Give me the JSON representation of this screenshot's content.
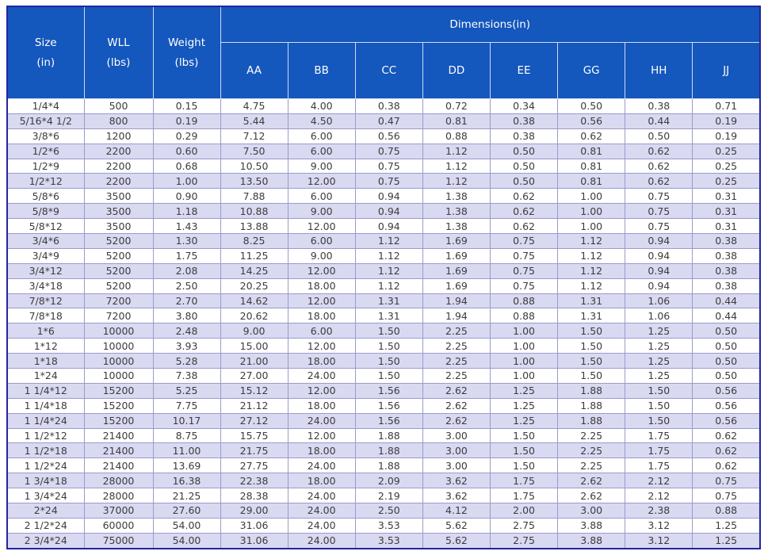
{
  "theme": {
    "header-bg": "#1457bd",
    "header-text": "#ffffff",
    "header-line": "#cfdcf2",
    "stripe-bg": "#d9d9f2",
    "row-bg": "#ffffff",
    "grid-border": "#9b9bca",
    "outer-border": "#2424a0",
    "body-text": "#3c3c3c"
  },
  "table": {
    "columns": {
      "size": {
        "label": "Size",
        "unit": "(in)"
      },
      "wll": {
        "label": "WLL",
        "unit": "(lbs)"
      },
      "weight": {
        "label": "Weight",
        "unit": "(lbs)"
      }
    },
    "dimensions_label": "Dimensions(in)"
  },
  "chart_data": {
    "type": "table",
    "title": "",
    "column_groups": [
      {
        "label": "Dimensions(in)",
        "span": [
          "AA",
          "BB",
          "CC",
          "DD",
          "EE",
          "GG",
          "HH",
          "JJ"
        ]
      }
    ],
    "columns": [
      "Size (in)",
      "WLL (lbs)",
      "Weight (lbs)",
      "AA",
      "BB",
      "CC",
      "DD",
      "EE",
      "GG",
      "HH",
      "JJ"
    ],
    "dim_columns": [
      "AA",
      "BB",
      "CC",
      "DD",
      "EE",
      "GG",
      "HH",
      "JJ"
    ],
    "rows": [
      [
        "1/4*4",
        "500",
        "0.15",
        "4.75",
        "4.00",
        "0.38",
        "0.72",
        "0.34",
        "0.50",
        "0.38",
        "0.71"
      ],
      [
        "5/16*4 1/2",
        "800",
        "0.19",
        "5.44",
        "4.50",
        "0.47",
        "0.81",
        "0.38",
        "0.56",
        "0.44",
        "0.19"
      ],
      [
        "3/8*6",
        "1200",
        "0.29",
        "7.12",
        "6.00",
        "0.56",
        "0.88",
        "0.38",
        "0.62",
        "0.50",
        "0.19"
      ],
      [
        "1/2*6",
        "2200",
        "0.60",
        "7.50",
        "6.00",
        "0.75",
        "1.12",
        "0.50",
        "0.81",
        "0.62",
        "0.25"
      ],
      [
        "1/2*9",
        "2200",
        "0.68",
        "10.50",
        "9.00",
        "0.75",
        "1.12",
        "0.50",
        "0.81",
        "0.62",
        "0.25"
      ],
      [
        "1/2*12",
        "2200",
        "1.00",
        "13.50",
        "12.00",
        "0.75",
        "1.12",
        "0.50",
        "0.81",
        "0.62",
        "0.25"
      ],
      [
        "5/8*6",
        "3500",
        "0.90",
        "7.88",
        "6.00",
        "0.94",
        "1.38",
        "0.62",
        "1.00",
        "0.75",
        "0.31"
      ],
      [
        "5/8*9",
        "3500",
        "1.18",
        "10.88",
        "9.00",
        "0.94",
        "1.38",
        "0.62",
        "1.00",
        "0.75",
        "0.31"
      ],
      [
        "5/8*12",
        "3500",
        "1.43",
        "13.88",
        "12.00",
        "0.94",
        "1.38",
        "0.62",
        "1.00",
        "0.75",
        "0.31"
      ],
      [
        "3/4*6",
        "5200",
        "1.30",
        "8.25",
        "6.00",
        "1.12",
        "1.69",
        "0.75",
        "1.12",
        "0.94",
        "0.38"
      ],
      [
        "3/4*9",
        "5200",
        "1.75",
        "11.25",
        "9.00",
        "1.12",
        "1.69",
        "0.75",
        "1.12",
        "0.94",
        "0.38"
      ],
      [
        "3/4*12",
        "5200",
        "2.08",
        "14.25",
        "12.00",
        "1.12",
        "1.69",
        "0.75",
        "1.12",
        "0.94",
        "0.38"
      ],
      [
        "3/4*18",
        "5200",
        "2.50",
        "20.25",
        "18.00",
        "1.12",
        "1.69",
        "0.75",
        "1.12",
        "0.94",
        "0.38"
      ],
      [
        "7/8*12",
        "7200",
        "2.70",
        "14.62",
        "12.00",
        "1.31",
        "1.94",
        "0.88",
        "1.31",
        "1.06",
        "0.44"
      ],
      [
        "7/8*18",
        "7200",
        "3.80",
        "20.62",
        "18.00",
        "1.31",
        "1.94",
        "0.88",
        "1.31",
        "1.06",
        "0.44"
      ],
      [
        "1*6",
        "10000",
        "2.48",
        "9.00",
        "6.00",
        "1.50",
        "2.25",
        "1.00",
        "1.50",
        "1.25",
        "0.50"
      ],
      [
        "1*12",
        "10000",
        "3.93",
        "15.00",
        "12.00",
        "1.50",
        "2.25",
        "1.00",
        "1.50",
        "1.25",
        "0.50"
      ],
      [
        "1*18",
        "10000",
        "5.28",
        "21.00",
        "18.00",
        "1.50",
        "2.25",
        "1.00",
        "1.50",
        "1.25",
        "0.50"
      ],
      [
        "1*24",
        "10000",
        "7.38",
        "27.00",
        "24.00",
        "1.50",
        "2.25",
        "1.00",
        "1.50",
        "1.25",
        "0.50"
      ],
      [
        "1 1/4*12",
        "15200",
        "5.25",
        "15.12",
        "12.00",
        "1.56",
        "2.62",
        "1.25",
        "1.88",
        "1.50",
        "0.56"
      ],
      [
        "1 1/4*18",
        "15200",
        "7.75",
        "21.12",
        "18.00",
        "1.56",
        "2.62",
        "1.25",
        "1.88",
        "1.50",
        "0.56"
      ],
      [
        "1 1/4*24",
        "15200",
        "10.17",
        "27.12",
        "24.00",
        "1.56",
        "2.62",
        "1.25",
        "1.88",
        "1.50",
        "0.56"
      ],
      [
        "1 1/2*12",
        "21400",
        "8.75",
        "15.75",
        "12.00",
        "1.88",
        "3.00",
        "1.50",
        "2.25",
        "1.75",
        "0.62"
      ],
      [
        "1 1/2*18",
        "21400",
        "11.00",
        "21.75",
        "18.00",
        "1.88",
        "3.00",
        "1.50",
        "2.25",
        "1.75",
        "0.62"
      ],
      [
        "1 1/2*24",
        "21400",
        "13.69",
        "27.75",
        "24.00",
        "1.88",
        "3.00",
        "1.50",
        "2.25",
        "1.75",
        "0.62"
      ],
      [
        "1 3/4*18",
        "28000",
        "16.38",
        "22.38",
        "18.00",
        "2.09",
        "3.62",
        "1.75",
        "2.62",
        "2.12",
        "0.75"
      ],
      [
        "1 3/4*24",
        "28000",
        "21.25",
        "28.38",
        "24.00",
        "2.19",
        "3.62",
        "1.75",
        "2.62",
        "2.12",
        "0.75"
      ],
      [
        "2*24",
        "37000",
        "27.60",
        "29.00",
        "24.00",
        "2.50",
        "4.12",
        "2.00",
        "3.00",
        "2.38",
        "0.88"
      ],
      [
        "2 1/2*24",
        "60000",
        "54.00",
        "31.06",
        "24.00",
        "3.53",
        "5.62",
        "2.75",
        "3.88",
        "3.12",
        "1.25"
      ],
      [
        "2 3/4*24",
        "75000",
        "54.00",
        "31.06",
        "24.00",
        "3.53",
        "5.62",
        "2.75",
        "3.88",
        "3.12",
        "1.25"
      ]
    ]
  }
}
